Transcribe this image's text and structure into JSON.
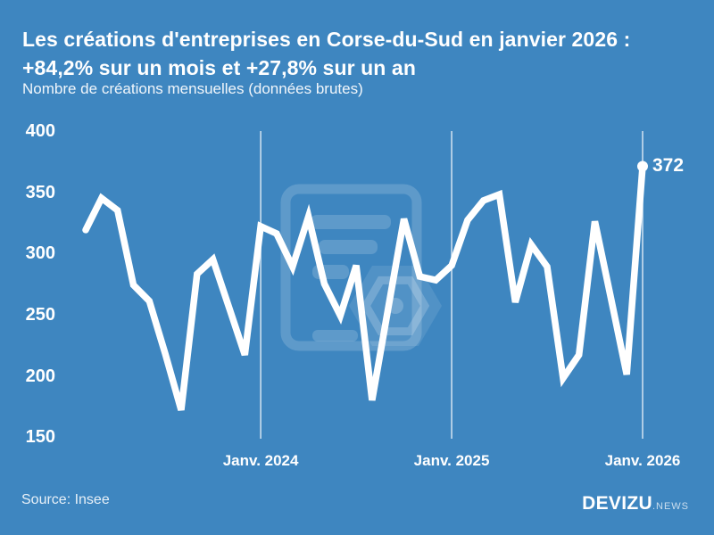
{
  "header": {
    "title_line1": "Les créations d'entreprises en Corse-du-Sud en janvier 2026 :",
    "title_line2": "+84,2% sur un mois et +27,8% sur un an",
    "subtitle": "Nombre de créations mensuelles (données brutes)"
  },
  "footer": {
    "source": "Source: Insee",
    "brand": "DEVIZU",
    "brand_suffix": ".NEWS"
  },
  "colors": {
    "background": "#3e86c0",
    "line": "#ffffff",
    "gridline": "rgba(255,255,255,0.78)",
    "watermark": "rgba(255,255,255,0.18)"
  },
  "chart_data": {
    "type": "line",
    "title": "Les créations d'entreprises en Corse-du-Sud en janvier 2026 : +84,2% sur un mois et +27,8% sur un an",
    "subtitle": "Nombre de créations mensuelles (données brutes)",
    "x": [
      "févr. 2023",
      "mars 2023",
      "avr. 2023",
      "mai 2023",
      "juin 2023",
      "juil. 2023",
      "août 2023",
      "sept. 2023",
      "oct. 2023",
      "nov. 2023",
      "déc. 2023",
      "janv. 2024",
      "févr. 2024",
      "mars 2024",
      "avr. 2024",
      "mai 2024",
      "juin 2024",
      "juil. 2024",
      "août 2024",
      "sept. 2024",
      "oct. 2024",
      "nov. 2024",
      "déc. 2024",
      "janv. 2025",
      "févr. 2025",
      "mars 2025",
      "avr. 2025",
      "mai 2025",
      "juin 2025",
      "juil. 2025",
      "août 2025",
      "sept. 2025",
      "oct. 2025",
      "nov. 2025",
      "déc. 2025",
      "janv. 2026"
    ],
    "values": [
      320,
      346,
      336,
      275,
      262,
      219,
      173,
      284,
      296,
      257,
      218,
      323,
      317,
      290,
      331,
      276,
      250,
      291,
      181,
      255,
      329,
      282,
      279,
      291,
      328,
      344,
      349,
      261,
      308,
      290,
      199,
      218,
      327,
      265,
      202,
      372
    ],
    "ylabel": "",
    "xlabel": "",
    "ylim": [
      150,
      400
    ],
    "y_ticks": [
      400,
      350,
      300,
      250,
      200,
      150
    ],
    "x_tick_labels": [
      "Janv. 2024",
      "Janv. 2025",
      "Janv. 2026"
    ],
    "x_tick_positions_idx": [
      11,
      23,
      35
    ],
    "grid": "vertical-only",
    "legend": "none",
    "end_label": "372",
    "last_point_value": 372
  }
}
